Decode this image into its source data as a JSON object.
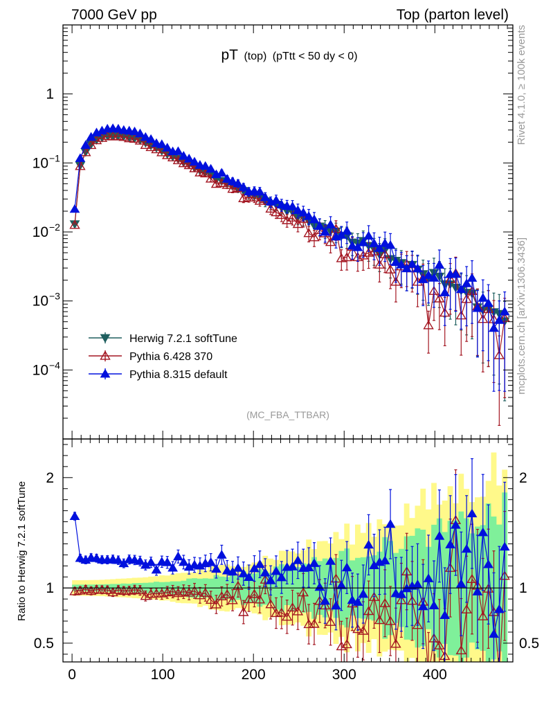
{
  "header": {
    "left_title": "7000 GeV pp",
    "right_title": "Top (parton level)"
  },
  "side_labels": {
    "rivet": "Rivet 4.1.0, ≥ 100k events",
    "mcplots": "mcplots.cern.ch [arXiv:1306.3436]"
  },
  "chart_data": {
    "type": "line",
    "title": "pT (top) (pTtt < 50 dy < 0)",
    "title_main": "pT",
    "title_sub": "(top)",
    "title_cut": "(pTtt < 50 dy < 0)",
    "analysis_tag": "(MC_FBA_TTBAR)",
    "xlabel": "",
    "xlim": [
      -10,
      486
    ],
    "x_ticks": [
      "0",
      "100",
      "200",
      "300",
      "400"
    ],
    "main_panel": {
      "yscale": "log",
      "ylim": [
        1e-05,
        10
      ],
      "y_ticks": [
        "1",
        "10^-1",
        "10^-2",
        "10^-3",
        "10^-4"
      ],
      "y_tick_values": [
        1,
        0.1,
        0.01,
        0.001,
        0.0001
      ]
    },
    "ratio_panel": {
      "ylabel": "Ratio to Herwig 7.2.1 softTune",
      "ylim": [
        0.33,
        2.35
      ],
      "y_ticks": [
        "2",
        "1",
        "0.5"
      ],
      "y_tick_values": [
        2,
        1,
        0.5
      ],
      "band_inner_halfwidth_start": 0.03,
      "band_inner_halfwidth_end": 0.7,
      "band_outer_halfwidth_start": 0.07,
      "band_outer_halfwidth_end": 1.1
    },
    "bins": {
      "start": 3,
      "step": 6,
      "count": 80
    },
    "series": [
      {
        "name": "Herwig 7.2.1 softTune",
        "color": "#1f5f5f",
        "marker": "triangle-down-filled",
        "peak_x": 75,
        "peak_value": 0.215,
        "value_at_400": 0.0024,
        "value_at_475": 0.00055,
        "first_value": 0.013
      },
      {
        "name": "Pythia 6.428 370",
        "color": "#a31520",
        "marker": "triangle-up-open",
        "ratio_start": 1.0,
        "ratio_end": 0.72,
        "ratio_first": 0.97
      },
      {
        "name": "Pythia 8.315 default",
        "color": "#0010dd",
        "marker": "triangle-up-filled",
        "ratio_start": 1.27,
        "ratio_end": 1.05,
        "ratio_first": 1.65
      }
    ],
    "legend_position": "bottom-left"
  }
}
